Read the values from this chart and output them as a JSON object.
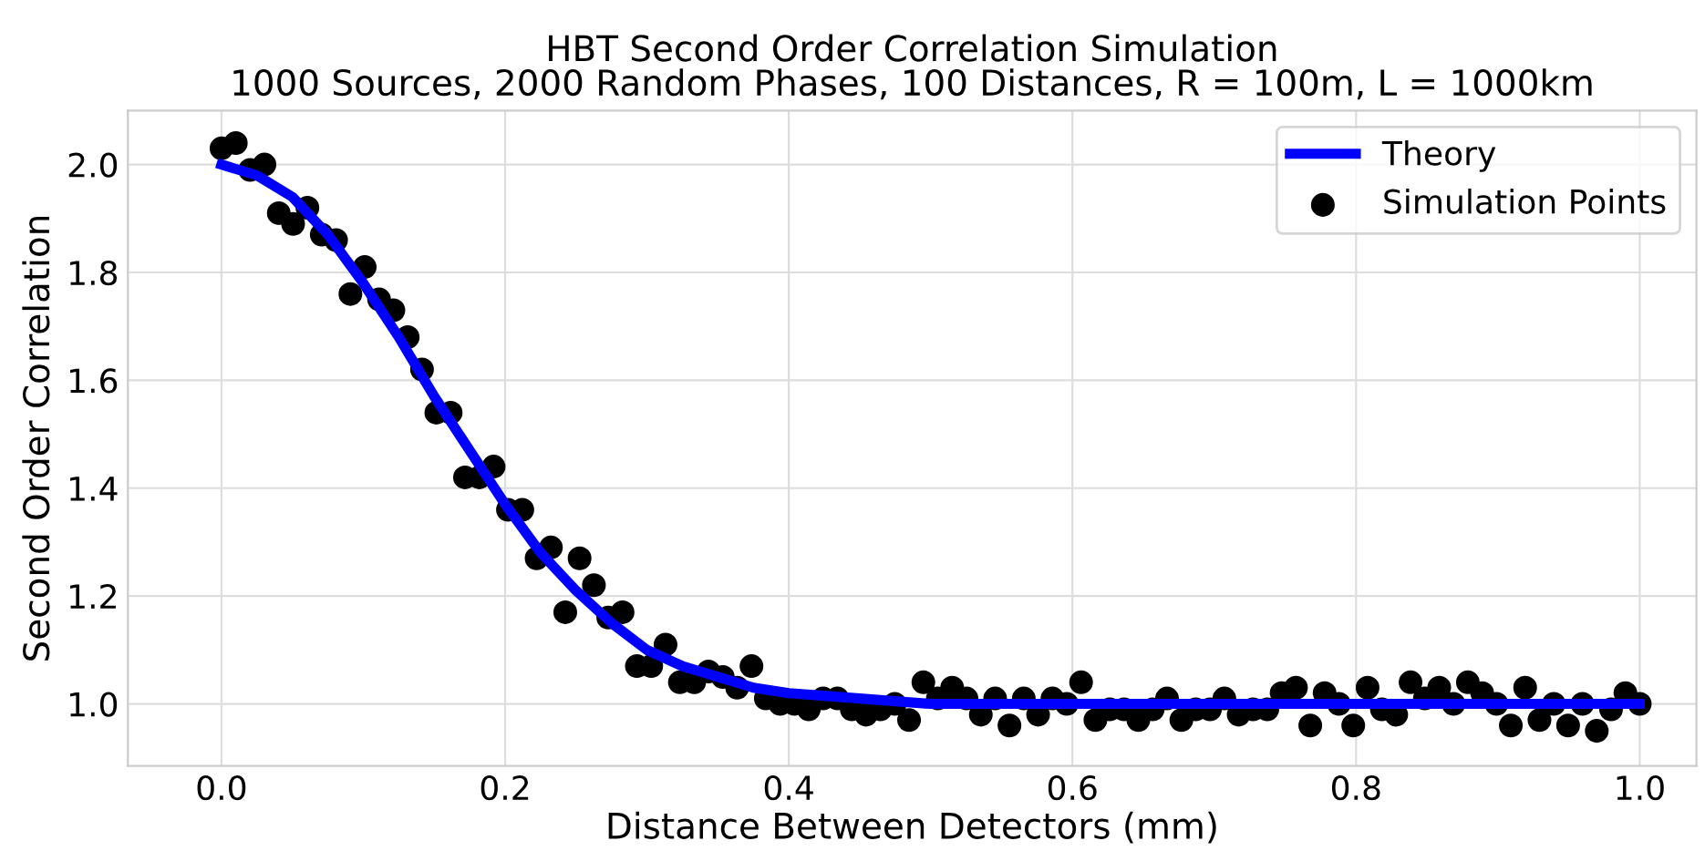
{
  "chart_data": {
    "type": "scatter",
    "title": "HBT Second Order Correlation Simulation\n1000 Sources, 2000 Random Phases, 100 Distances, R = 100m, L = 1000km",
    "xlabel": "Distance Between Detectors (mm)",
    "ylabel": "Second Order Correlation",
    "xlim": [
      -0.066,
      1.04
    ],
    "ylim": [
      0.885,
      2.1
    ],
    "xticks": [
      {
        "value": 0,
        "label": "0.0"
      },
      0.2,
      0.4,
      0.6,
      0.8,
      {
        "value": 1,
        "label": "1.0"
      }
    ],
    "yticks": [
      {
        "value": 1,
        "label": "1.0"
      },
      1.2,
      1.4,
      1.6,
      1.8,
      {
        "value": 2,
        "label": "2.0"
      }
    ],
    "grid": true,
    "legend": "top right",
    "series": [
      {
        "name": "Theory",
        "type": "line",
        "color": "#0000ff",
        "line_style": "solid",
        "marker": "none",
        "x": [
          0,
          0.025,
          0.05,
          0.075,
          0.1,
          0.125,
          0.15,
          0.175,
          0.2,
          0.225,
          0.25,
          0.275,
          0.3,
          0.325,
          0.35,
          0.375,
          0.4,
          0.45,
          0.5,
          0.6,
          0.8,
          1.0
        ],
        "values": [
          2.0,
          1.98,
          1.94,
          1.87,
          1.78,
          1.68,
          1.57,
          1.47,
          1.37,
          1.28,
          1.21,
          1.15,
          1.1,
          1.07,
          1.05,
          1.03,
          1.02,
          1.01,
          1.0,
          1.0,
          1.0,
          1.0
        ]
      },
      {
        "name": "Simulation Points",
        "color": "#000000",
        "marker": "circle",
        "x": [
          0.0,
          0.0101,
          0.0202,
          0.0303,
          0.0404,
          0.0505,
          0.0606,
          0.0707,
          0.0808,
          0.0909,
          0.101,
          0.1111,
          0.1212,
          0.1313,
          0.1414,
          0.1515,
          0.1616,
          0.1717,
          0.1818,
          0.1919,
          0.202,
          0.2121,
          0.2222,
          0.2323,
          0.2424,
          0.2525,
          0.2626,
          0.2727,
          0.2828,
          0.2929,
          0.303,
          0.3131,
          0.3232,
          0.3333,
          0.3434,
          0.3535,
          0.3636,
          0.3737,
          0.3838,
          0.3939,
          0.404,
          0.4141,
          0.4242,
          0.4343,
          0.4444,
          0.4545,
          0.4646,
          0.4747,
          0.4848,
          0.4949,
          0.5051,
          0.5152,
          0.5253,
          0.5354,
          0.5455,
          0.5556,
          0.5657,
          0.5758,
          0.5859,
          0.596,
          0.6061,
          0.6162,
          0.6263,
          0.6364,
          0.6465,
          0.6566,
          0.6667,
          0.6768,
          0.6869,
          0.697,
          0.7071,
          0.7172,
          0.7273,
          0.7374,
          0.7475,
          0.7576,
          0.7677,
          0.7778,
          0.7879,
          0.798,
          0.8081,
          0.8182,
          0.8283,
          0.8384,
          0.8485,
          0.8586,
          0.8687,
          0.8788,
          0.8889,
          0.899,
          0.9091,
          0.9192,
          0.9293,
          0.9394,
          0.9495,
          0.9596,
          0.9697,
          0.9798,
          0.9899,
          1.0
        ],
        "values": [
          2.03,
          2.04,
          1.99,
          2.0,
          1.91,
          1.89,
          1.92,
          1.87,
          1.86,
          1.76,
          1.81,
          1.75,
          1.73,
          1.68,
          1.62,
          1.54,
          1.54,
          1.42,
          1.42,
          1.44,
          1.36,
          1.36,
          1.27,
          1.29,
          1.17,
          1.27,
          1.22,
          1.16,
          1.17,
          1.07,
          1.07,
          1.11,
          1.04,
          1.04,
          1.06,
          1.05,
          1.03,
          1.07,
          1.01,
          1.0,
          1.0,
          0.99,
          1.01,
          1.01,
          0.99,
          0.98,
          0.99,
          1.0,
          0.97,
          1.04,
          1.01,
          1.03,
          1.01,
          0.98,
          1.01,
          0.96,
          1.01,
          0.98,
          1.01,
          1.0,
          1.04,
          0.97,
          0.99,
          0.99,
          0.97,
          0.99,
          1.01,
          0.97,
          0.99,
          0.99,
          1.01,
          0.98,
          0.99,
          0.99,
          1.02,
          1.03,
          0.96,
          1.02,
          1.0,
          0.96,
          1.03,
          0.99,
          0.98,
          1.04,
          1.01,
          1.03,
          1.0,
          1.04,
          1.02,
          1.0,
          0.96,
          1.03,
          0.97,
          1.0,
          0.96,
          1.0,
          0.95,
          0.99,
          1.02,
          1.0
        ]
      }
    ]
  }
}
